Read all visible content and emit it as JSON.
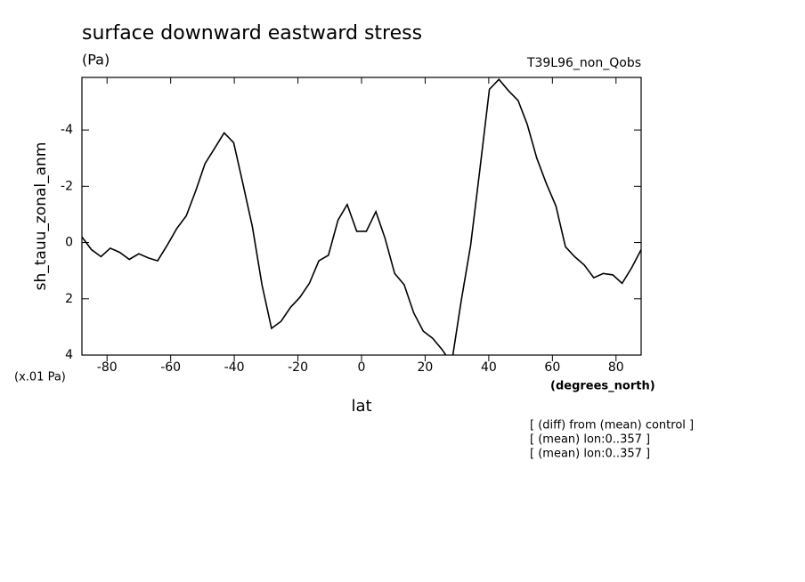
{
  "chart_data": {
    "type": "line",
    "title": "surface downward eastward stress",
    "subtitle": "(Pa)",
    "run_label": "T39L96_non_Qobs",
    "y_label": "sh_tauu_zonal_anm",
    "y_units": "(x.01 Pa)",
    "x_label": "lat",
    "x_units": "(degrees_north)",
    "notes": [
      "[ (diff) from (mean) control ]",
      "[ (mean) lon:0..357 ]",
      "[ (mean) lon:0..357 ]"
    ],
    "x": [
      -87.9,
      -84.9,
      -81.9,
      -79.0,
      -76.0,
      -73.0,
      -70.0,
      -67.0,
      -64.1,
      -61.1,
      -58.1,
      -55.1,
      -52.1,
      -49.2,
      -46.2,
      -43.2,
      -40.2,
      -37.2,
      -34.3,
      -31.3,
      -28.3,
      -25.3,
      -22.3,
      -19.4,
      -16.4,
      -13.4,
      -10.4,
      -7.4,
      -4.5,
      -1.5,
      1.5,
      4.5,
      7.4,
      10.4,
      13.4,
      16.4,
      19.4,
      22.3,
      25.3,
      28.3,
      31.3,
      34.3,
      37.2,
      40.2,
      43.2,
      46.2,
      49.2,
      52.1,
      55.1,
      58.1,
      61.1,
      64.1,
      67.0,
      70.0,
      73.0,
      76.0,
      79.0,
      81.9,
      84.9,
      87.9
    ],
    "series": [
      {
        "name": "sh_tauu_zonal_anm",
        "color": "#000000",
        "values": [
          -0.2,
          0.25,
          0.5,
          0.2,
          0.35,
          0.6,
          0.4,
          0.55,
          0.65,
          0.1,
          -0.5,
          -0.95,
          -1.85,
          -2.8,
          -3.35,
          -3.9,
          -3.55,
          -2.05,
          -0.55,
          1.5,
          3.05,
          2.8,
          2.3,
          1.95,
          1.45,
          0.65,
          0.45,
          -0.8,
          -1.35,
          -0.4,
          -0.4,
          -1.1,
          -0.15,
          1.1,
          1.5,
          2.5,
          3.15,
          3.4,
          3.8,
          4.3,
          2.1,
          0.1,
          -2.6,
          -5.45,
          -5.8,
          -5.4,
          -5.05,
          -4.2,
          -3.0,
          -2.1,
          -1.3,
          0.15,
          0.5,
          0.8,
          1.25,
          1.1,
          1.15,
          1.45,
          0.9,
          0.25
        ]
      }
    ],
    "xlim": [
      -87.9,
      87.9
    ],
    "xticks": [
      -80,
      -60,
      -40,
      -20,
      0,
      20,
      40,
      60,
      80
    ],
    "ylim": [
      4,
      -5.87
    ],
    "yticks": [
      -4,
      -2,
      0,
      2,
      4
    ]
  }
}
